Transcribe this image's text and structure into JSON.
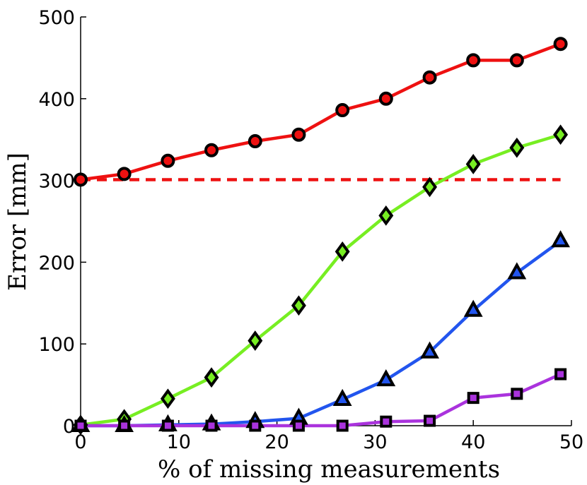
{
  "chart_data": {
    "type": "line",
    "title": "",
    "xlabel": "% of missing measurements",
    "ylabel": "Error [mm]",
    "xlim": [
      0,
      50
    ],
    "ylim": [
      0,
      500
    ],
    "xticks": [
      0,
      10,
      20,
      30,
      40,
      50
    ],
    "yticks": [
      0,
      100,
      200,
      300,
      400,
      500
    ],
    "grid": false,
    "x": [
      0,
      4.44,
      8.89,
      13.33,
      17.78,
      22.22,
      26.67,
      31.11,
      35.56,
      40,
      44.44,
      48.89
    ],
    "series": [
      {
        "color": "#ee1111",
        "marker": "circle",
        "values": [
          301,
          308,
          324,
          337,
          348,
          356,
          386,
          400,
          426,
          447,
          447,
          467
        ]
      },
      {
        "color": "#77ee22",
        "marker": "diamond",
        "values": [
          1,
          8,
          33,
          59,
          104,
          147,
          213,
          257,
          292,
          320,
          340,
          356
        ]
      },
      {
        "color": "#2255ee",
        "marker": "triangle",
        "values": [
          0,
          0,
          1,
          2,
          5,
          9,
          32,
          56,
          90,
          141,
          187,
          226
        ]
      },
      {
        "color": "#aa33dd",
        "marker": "square",
        "values": [
          0,
          0,
          0,
          0,
          0,
          0,
          0,
          5,
          6,
          34,
          39,
          63
        ]
      }
    ],
    "reference_lines": [
      {
        "color": "#ee1111",
        "style": "dashed",
        "y": 301,
        "x_range": [
          0,
          48.89
        ]
      }
    ]
  }
}
